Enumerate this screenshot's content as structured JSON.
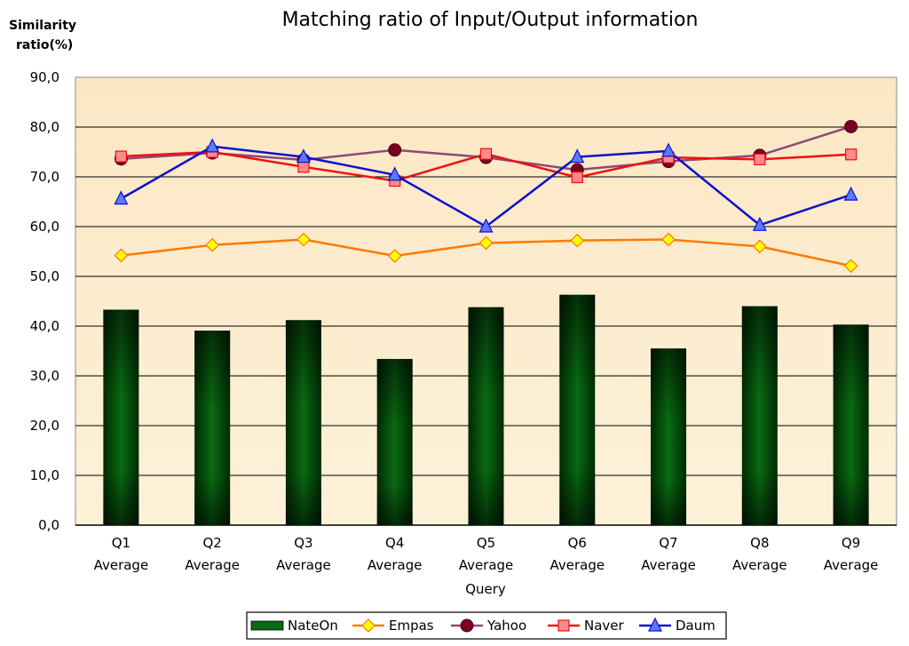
{
  "chart_data": {
    "type": "bar",
    "title": "Matching ratio of Input/Output information",
    "ylabel_line1": "Similarity",
    "ylabel_line2": "ratio(%)",
    "xlabel": "Query",
    "ylim": [
      0,
      90
    ],
    "yticks": [
      "0,0",
      "10,0",
      "20,0",
      "30,0",
      "40,0",
      "50,0",
      "60,0",
      "70,0",
      "80,0",
      "90,0"
    ],
    "categories": [
      [
        "Q1",
        "Average"
      ],
      [
        "Q2",
        "Average"
      ],
      [
        "Q3",
        "Average"
      ],
      [
        "Q4",
        "Average"
      ],
      [
        "Q5",
        "Average"
      ],
      [
        "Q6",
        "Average"
      ],
      [
        "Q7",
        "Average"
      ],
      [
        "Q8",
        "Average"
      ],
      [
        "Q9",
        "Average"
      ]
    ],
    "grid": true,
    "legend_position": "bottom",
    "plot_background": "#fdf1d8",
    "series": [
      {
        "name": "NateOn",
        "kind": "bar",
        "color": "#0a6b12",
        "marker": "rect",
        "values": [
          43.3,
          39.1,
          41.2,
          33.4,
          43.8,
          46.3,
          35.5,
          44.0,
          40.3
        ]
      },
      {
        "name": "Empas",
        "kind": "line",
        "color": "#ff7a00",
        "marker": "diamond",
        "marker_fill": "#ffff00",
        "values": [
          54.2,
          56.3,
          57.4,
          54.1,
          56.7,
          57.2,
          57.4,
          56.0,
          52.1
        ]
      },
      {
        "name": "Yahoo",
        "kind": "line",
        "color": "#8b4a7a",
        "marker": "circle",
        "marker_fill": "#7a0020",
        "values": [
          73.6,
          74.8,
          73.4,
          75.4,
          73.9,
          71.4,
          73.1,
          74.3,
          80.1
        ]
      },
      {
        "name": "Naver",
        "kind": "line",
        "color": "#ee1111",
        "marker": "square",
        "marker_fill": "#ff8a8a",
        "values": [
          74.1,
          75.0,
          72.0,
          69.2,
          74.6,
          69.9,
          73.9,
          73.5,
          74.5
        ]
      },
      {
        "name": "Daum",
        "kind": "line",
        "color": "#1010cc",
        "marker": "triangle",
        "marker_fill": "#5b7bff",
        "values": [
          65.6,
          76.1,
          74.0,
          70.4,
          60.0,
          74.0,
          75.2,
          60.3,
          66.4
        ]
      }
    ]
  }
}
